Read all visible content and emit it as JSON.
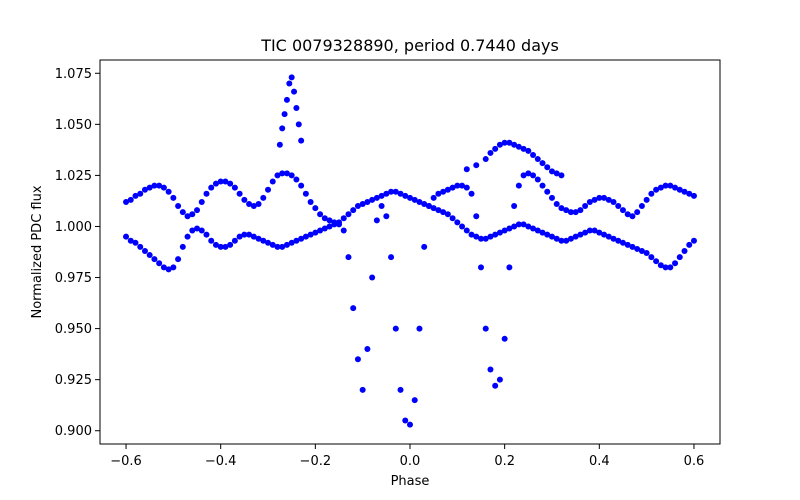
{
  "chart_data": {
    "type": "scatter",
    "title": "TIC 0079328890, period 0.7440 days",
    "xlabel": "Phase",
    "ylabel": "Normalized PDC flux",
    "xlim": [
      -0.655,
      0.655
    ],
    "ylim": [
      0.8935,
      1.0815
    ],
    "xticks": [
      -0.6,
      -0.4,
      -0.2,
      0.0,
      0.2,
      0.4,
      0.6
    ],
    "xtick_labels": [
      "−0.6",
      "−0.4",
      "−0.2",
      "0.0",
      "0.2",
      "0.4",
      "0.6"
    ],
    "yticks": [
      0.9,
      0.925,
      0.95,
      0.975,
      1.0,
      1.025,
      1.05,
      1.075
    ],
    "ytick_labels": [
      "0.900",
      "0.925",
      "0.950",
      "0.975",
      "1.000",
      "1.025",
      "1.050",
      "1.075"
    ],
    "grid": false,
    "marker_color": "#0000ff",
    "series": [
      {
        "x": [
          -0.6,
          -0.59,
          -0.58,
          -0.57,
          -0.56,
          -0.55,
          -0.54,
          -0.53,
          -0.52,
          -0.51,
          -0.5,
          -0.49,
          -0.48,
          -0.47,
          -0.46,
          -0.45,
          -0.44,
          -0.43,
          -0.42,
          -0.41,
          -0.4,
          -0.39,
          -0.38,
          -0.37,
          -0.36,
          -0.35,
          -0.34,
          -0.33,
          -0.32,
          -0.31,
          -0.3,
          -0.29,
          -0.28,
          -0.27,
          -0.26,
          -0.25,
          -0.24,
          -0.23,
          -0.22,
          -0.21,
          -0.2,
          -0.19,
          -0.18,
          -0.17,
          -0.16,
          -0.15,
          -0.14,
          -0.13,
          -0.12,
          -0.11,
          -0.1,
          -0.09,
          -0.08,
          -0.07,
          -0.06,
          -0.05,
          -0.04,
          -0.03,
          -0.02,
          -0.01,
          0.0,
          0.01,
          0.02,
          0.03,
          0.04,
          0.05,
          0.06,
          0.07,
          0.08,
          0.09,
          0.1,
          0.11,
          0.12,
          0.13,
          0.14,
          0.15,
          0.16,
          0.17,
          0.18,
          0.19,
          0.2,
          0.21,
          0.22,
          0.23,
          0.24,
          0.25,
          0.26,
          0.27,
          0.28,
          0.29,
          0.3,
          0.31,
          0.32,
          0.33,
          0.34,
          0.35,
          0.36,
          0.37,
          0.38,
          0.39,
          0.4,
          0.41,
          0.42,
          0.43,
          0.44,
          0.45,
          0.46,
          0.47,
          0.48,
          0.49,
          0.5,
          0.51,
          0.52,
          0.53,
          0.54,
          0.55,
          0.56,
          0.57,
          0.58,
          0.59,
          0.6
        ],
        "y": [
          1.012,
          1.013,
          1.015,
          1.016,
          1.018,
          1.019,
          1.02,
          1.02,
          1.019,
          1.017,
          1.014,
          1.01,
          1.007,
          1.005,
          1.006,
          1.008,
          1.012,
          1.016,
          1.019,
          1.021,
          1.022,
          1.022,
          1.021,
          1.019,
          1.016,
          1.013,
          1.011,
          1.01,
          1.011,
          1.014,
          1.018,
          1.022,
          1.025,
          1.026,
          1.026,
          1.025,
          1.023,
          1.02,
          1.016,
          1.012,
          1.009,
          1.006,
          1.004,
          1.003,
          1.002,
          1.001,
          0.998,
          0.985,
          0.96,
          0.935,
          0.92,
          0.94,
          0.975,
          1.003,
          1.01,
          1.005,
          0.985,
          0.95,
          0.92,
          0.905,
          0.903,
          0.915,
          0.95,
          0.99,
          1.01,
          1.014,
          1.016,
          1.017,
          1.018,
          1.019,
          1.02,
          1.02,
          1.019,
          1.016,
          1.005,
          0.98,
          0.95,
          0.93,
          0.922,
          0.925,
          0.945,
          0.98,
          1.01,
          1.02,
          1.025,
          1.026,
          1.025,
          1.023,
          1.02,
          1.017,
          1.014,
          1.011,
          1.009,
          1.008,
          1.007,
          1.007,
          1.008,
          1.01,
          1.012,
          1.013,
          1.014,
          1.014,
          1.013,
          1.012,
          1.01,
          1.008,
          1.006,
          1.005,
          1.007,
          1.01,
          1.013,
          1.016,
          1.018,
          1.019,
          1.02,
          1.02,
          1.019,
          1.018,
          1.017,
          1.016,
          1.015
        ]
      },
      {
        "x": [
          -0.6,
          -0.59,
          -0.58,
          -0.57,
          -0.56,
          -0.55,
          -0.54,
          -0.53,
          -0.52,
          -0.51,
          -0.5,
          -0.49,
          -0.48,
          -0.47,
          -0.46,
          -0.45,
          -0.44,
          -0.43,
          -0.42,
          -0.41,
          -0.4,
          -0.39,
          -0.38,
          -0.37,
          -0.36,
          -0.35,
          -0.34,
          -0.33,
          -0.32,
          -0.31,
          -0.3,
          -0.29,
          -0.28,
          -0.27,
          -0.26,
          -0.25,
          -0.24,
          -0.23,
          -0.22,
          -0.21,
          -0.2,
          -0.19,
          -0.18,
          -0.17,
          -0.16,
          -0.15,
          -0.14,
          -0.13,
          -0.12,
          -0.11,
          -0.1,
          -0.09,
          -0.08,
          -0.07,
          -0.06,
          -0.05,
          -0.04,
          -0.03,
          -0.02,
          -0.01,
          0.0,
          0.01,
          0.02,
          0.03,
          0.04,
          0.05,
          0.06,
          0.07,
          0.08,
          0.09,
          0.1,
          0.11,
          0.12,
          0.13,
          0.14,
          0.15,
          0.16,
          0.17,
          0.18,
          0.19,
          0.2,
          0.21,
          0.22,
          0.23,
          0.24,
          0.25,
          0.26,
          0.27,
          0.28,
          0.29,
          0.3,
          0.31,
          0.32,
          0.33,
          0.34,
          0.35,
          0.36,
          0.37,
          0.38,
          0.39,
          0.4,
          0.41,
          0.42,
          0.43,
          0.44,
          0.45,
          0.46,
          0.47,
          0.48,
          0.49,
          0.5,
          0.51,
          0.52,
          0.53,
          0.54,
          0.55,
          0.56,
          0.57,
          0.58,
          0.59,
          0.6
        ],
        "y": [
          0.995,
          0.993,
          0.992,
          0.99,
          0.988,
          0.986,
          0.984,
          0.982,
          0.98,
          0.979,
          0.98,
          0.984,
          0.99,
          0.995,
          0.998,
          0.999,
          0.998,
          0.996,
          0.993,
          0.991,
          0.99,
          0.99,
          0.991,
          0.993,
          0.995,
          0.996,
          0.996,
          0.995,
          0.994,
          0.993,
          0.992,
          0.991,
          0.99,
          0.99,
          0.991,
          0.992,
          0.993,
          0.994,
          0.995,
          0.996,
          0.997,
          0.998,
          0.999,
          1.0,
          1.001,
          1.002,
          1.004,
          1.006,
          1.008,
          1.01,
          1.011,
          1.012,
          1.013,
          1.014,
          1.015,
          1.016,
          1.017,
          1.017,
          1.016,
          1.015,
          1.014,
          1.013,
          1.012,
          1.011,
          1.01,
          1.009,
          1.008,
          1.007,
          1.006,
          1.004,
          1.002,
          1.0,
          0.998,
          0.996,
          0.995,
          0.994,
          0.994,
          0.995,
          0.996,
          0.997,
          0.998,
          0.999,
          1.0,
          1.001,
          1.001,
          1.0,
          0.999,
          0.998,
          0.997,
          0.996,
          0.995,
          0.994,
          0.993,
          0.993,
          0.994,
          0.995,
          0.996,
          0.997,
          0.998,
          0.998,
          0.997,
          0.996,
          0.995,
          0.994,
          0.993,
          0.992,
          0.991,
          0.99,
          0.989,
          0.988,
          0.987,
          0.985,
          0.983,
          0.981,
          0.98,
          0.98,
          0.982,
          0.985,
          0.988,
          0.991,
          0.993
        ]
      },
      {
        "x": [
          -0.275,
          -0.27,
          -0.265,
          -0.26,
          -0.255,
          -0.25,
          -0.245,
          -0.24,
          -0.235,
          -0.23,
          0.12,
          0.14,
          0.16,
          0.17,
          0.18,
          0.19,
          0.2,
          0.21,
          0.22,
          0.23,
          0.24,
          0.25,
          0.26,
          0.27,
          0.28,
          0.29,
          0.3,
          0.31,
          0.32
        ],
        "y": [
          1.04,
          1.048,
          1.055,
          1.062,
          1.07,
          1.073,
          1.066,
          1.058,
          1.05,
          1.042,
          1.028,
          1.03,
          1.033,
          1.036,
          1.038,
          1.04,
          1.041,
          1.041,
          1.04,
          1.039,
          1.038,
          1.037,
          1.035,
          1.033,
          1.031,
          1.029,
          1.027,
          1.026,
          1.025
        ]
      }
    ]
  }
}
